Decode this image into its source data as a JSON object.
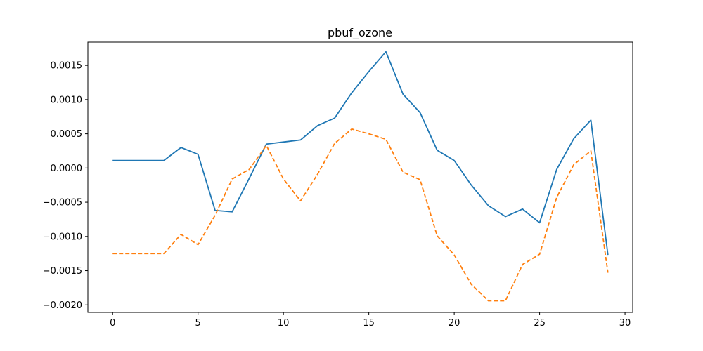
{
  "chart_data": {
    "type": "line",
    "title": "pbuf_ozone",
    "xlabel": "",
    "ylabel": "",
    "xlim": [
      -1.45,
      30.45
    ],
    "ylim": [
      -0.00211,
      0.00184
    ],
    "x_ticks": [
      0,
      5,
      10,
      15,
      20,
      25,
      30
    ],
    "y_ticks": [
      0.0015,
      0.001,
      0.0005,
      0.0,
      -0.0005,
      -0.001,
      -0.0015,
      -0.002
    ],
    "x_tick_labels": [
      "0",
      "5",
      "10",
      "15",
      "20",
      "25",
      "30"
    ],
    "y_tick_labels": [
      "0.0015",
      "0.0010",
      "0.0005",
      "0.0000",
      "−0.0005",
      "−0.0010",
      "−0.0015",
      "−0.0020"
    ],
    "grid": false,
    "x": [
      0,
      1,
      2,
      3,
      4,
      5,
      6,
      7,
      8,
      9,
      10,
      11,
      12,
      13,
      14,
      15,
      16,
      17,
      18,
      19,
      20,
      21,
      22,
      23,
      24,
      25,
      26,
      27,
      28,
      29
    ],
    "series": [
      {
        "color": "#1f77b4",
        "dash": "solid",
        "values": [
          0.00011,
          0.00011,
          0.00011,
          0.00011,
          0.0003,
          0.0002,
          -0.00062,
          -0.00064,
          -0.00015,
          0.00035,
          0.00038,
          0.00041,
          0.00062,
          0.00073,
          0.0011,
          0.00141,
          0.0017,
          0.00108,
          0.00081,
          0.00026,
          0.00011,
          -0.00025,
          -0.00055,
          -0.00071,
          -0.0006,
          -0.0008,
          -2e-05,
          0.00043,
          0.0007,
          -0.00127
        ]
      },
      {
        "color": "#ff7f0e",
        "dash": "dashed",
        "values": [
          -0.00125,
          -0.00125,
          -0.00125,
          -0.00125,
          -0.00097,
          -0.00112,
          -0.00069,
          -0.00016,
          -2e-05,
          0.00033,
          -0.00016,
          -0.00048,
          -9e-05,
          0.00036,
          0.00057,
          0.0005,
          0.00042,
          -6e-05,
          -0.00017,
          -0.00099,
          -0.00127,
          -0.0017,
          -0.00194,
          -0.00194,
          -0.00141,
          -0.00126,
          -0.00043,
          5e-05,
          0.00025,
          -0.00153
        ]
      }
    ]
  }
}
